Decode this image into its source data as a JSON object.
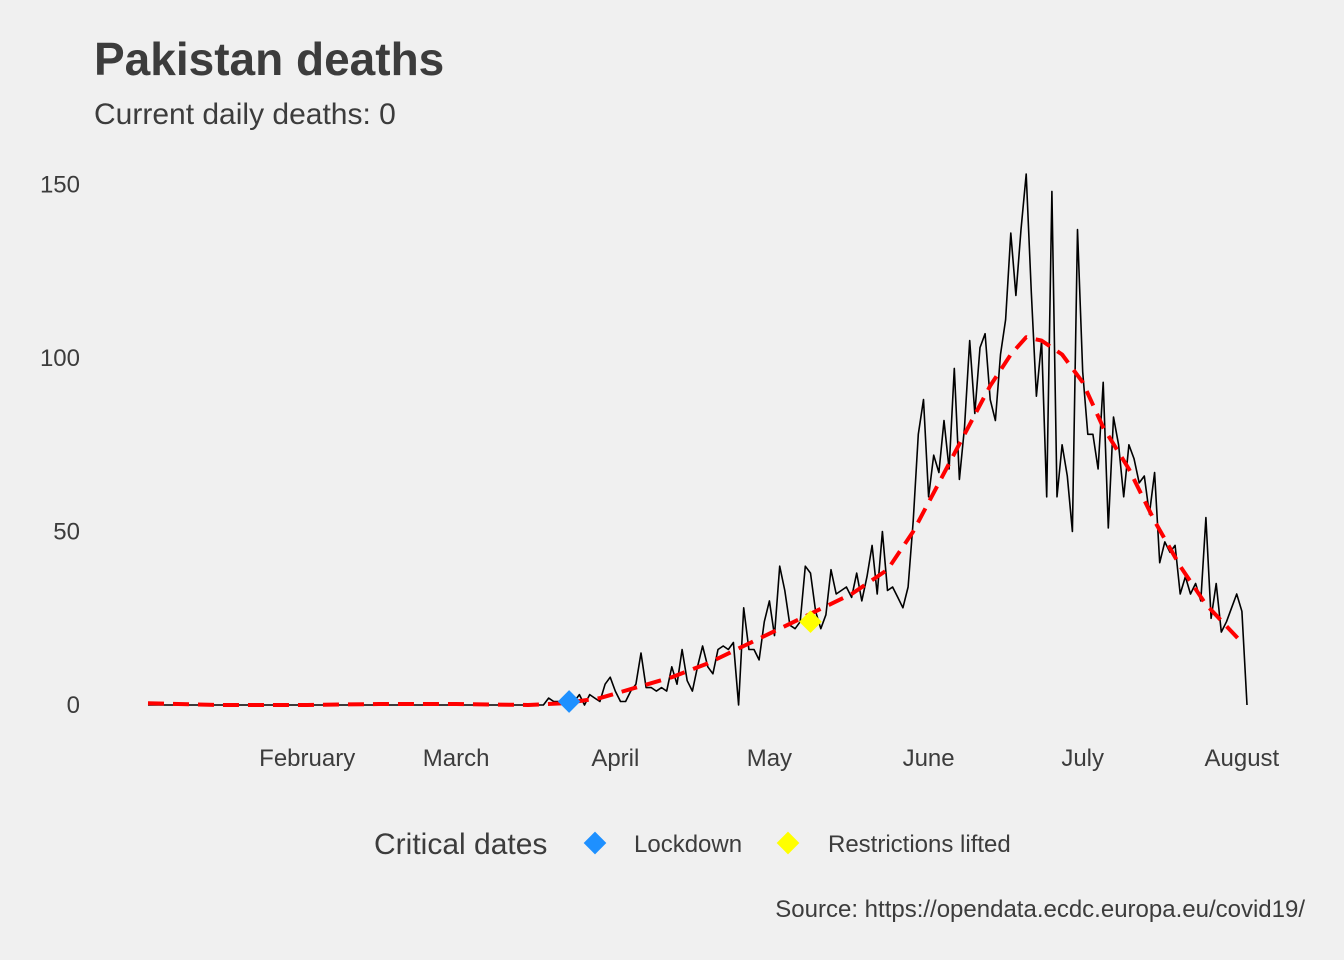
{
  "title": "Pakistan deaths",
  "subtitle": "Current daily deaths:  0",
  "caption": "Source: https://opendata.ecdc.europa.eu/covid19/",
  "legend": {
    "title": "Critical dates",
    "items": [
      {
        "label": "Lockdown",
        "color": "#1e90ff"
      },
      {
        "label": "Restrictions lifted",
        "color": "#ffff00"
      }
    ]
  },
  "chart_data": {
    "type": "line",
    "x_axis": {
      "min_date": "2020-01-01",
      "max_date": "2020-08-02",
      "ticks": [
        {
          "date": "2020-02-01",
          "label": "February"
        },
        {
          "date": "2020-03-01",
          "label": "March"
        },
        {
          "date": "2020-04-01",
          "label": "April"
        },
        {
          "date": "2020-05-01",
          "label": "May"
        },
        {
          "date": "2020-06-01",
          "label": "June"
        },
        {
          "date": "2020-07-01",
          "label": "July"
        },
        {
          "date": "2020-08-01",
          "label": "August"
        }
      ]
    },
    "y_axis": {
      "min": 0,
      "max": 155,
      "ticks": [
        0,
        50,
        100,
        150
      ]
    },
    "grid": false,
    "series": [
      {
        "style": "solid",
        "color": "#000000",
        "points": [
          [
            "2020-01-01",
            0
          ],
          [
            "2020-03-17",
            0
          ],
          [
            "2020-03-18",
            0
          ],
          [
            "2020-03-19",
            2
          ],
          [
            "2020-03-20",
            1
          ],
          [
            "2020-03-21",
            1
          ],
          [
            "2020-03-22",
            0
          ],
          [
            "2020-03-23",
            2
          ],
          [
            "2020-03-24",
            1
          ],
          [
            "2020-03-25",
            3
          ],
          [
            "2020-03-26",
            0
          ],
          [
            "2020-03-27",
            3
          ],
          [
            "2020-03-28",
            2
          ],
          [
            "2020-03-29",
            1
          ],
          [
            "2020-03-30",
            6
          ],
          [
            "2020-03-31",
            8
          ],
          [
            "2020-04-01",
            4
          ],
          [
            "2020-04-02",
            1
          ],
          [
            "2020-04-03",
            1
          ],
          [
            "2020-04-04",
            4
          ],
          [
            "2020-04-05",
            6
          ],
          [
            "2020-04-06",
            15
          ],
          [
            "2020-04-07",
            5
          ],
          [
            "2020-04-08",
            5
          ],
          [
            "2020-04-09",
            4
          ],
          [
            "2020-04-10",
            5
          ],
          [
            "2020-04-11",
            4
          ],
          [
            "2020-04-12",
            11
          ],
          [
            "2020-04-13",
            6
          ],
          [
            "2020-04-14",
            16
          ],
          [
            "2020-04-15",
            7
          ],
          [
            "2020-04-16",
            4
          ],
          [
            "2020-04-17",
            11
          ],
          [
            "2020-04-18",
            17
          ],
          [
            "2020-04-19",
            11
          ],
          [
            "2020-04-20",
            9
          ],
          [
            "2020-04-21",
            16
          ],
          [
            "2020-04-22",
            17
          ],
          [
            "2020-04-23",
            16
          ],
          [
            "2020-04-24",
            18
          ],
          [
            "2020-04-25",
            0
          ],
          [
            "2020-04-26",
            28
          ],
          [
            "2020-04-27",
            16
          ],
          [
            "2020-04-28",
            16
          ],
          [
            "2020-04-29",
            13
          ],
          [
            "2020-04-30",
            24
          ],
          [
            "2020-05-01",
            30
          ],
          [
            "2020-05-02",
            20
          ],
          [
            "2020-05-03",
            40
          ],
          [
            "2020-05-04",
            33
          ],
          [
            "2020-05-05",
            23
          ],
          [
            "2020-05-06",
            22
          ],
          [
            "2020-05-07",
            24
          ],
          [
            "2020-05-08",
            40
          ],
          [
            "2020-05-09",
            38
          ],
          [
            "2020-05-10",
            27
          ],
          [
            "2020-05-11",
            22
          ],
          [
            "2020-05-12",
            26
          ],
          [
            "2020-05-13",
            39
          ],
          [
            "2020-05-14",
            32
          ],
          [
            "2020-05-15",
            33
          ],
          [
            "2020-05-16",
            34
          ],
          [
            "2020-05-17",
            31
          ],
          [
            "2020-05-18",
            38
          ],
          [
            "2020-05-19",
            30
          ],
          [
            "2020-05-20",
            37
          ],
          [
            "2020-05-21",
            46
          ],
          [
            "2020-05-22",
            32
          ],
          [
            "2020-05-23",
            50
          ],
          [
            "2020-05-24",
            33
          ],
          [
            "2020-05-25",
            34
          ],
          [
            "2020-05-26",
            31
          ],
          [
            "2020-05-27",
            28
          ],
          [
            "2020-05-28",
            34
          ],
          [
            "2020-05-29",
            53
          ],
          [
            "2020-05-30",
            78
          ],
          [
            "2020-05-31",
            88
          ],
          [
            "2020-06-01",
            60
          ],
          [
            "2020-06-02",
            72
          ],
          [
            "2020-06-03",
            67
          ],
          [
            "2020-06-04",
            82
          ],
          [
            "2020-06-05",
            68
          ],
          [
            "2020-06-06",
            97
          ],
          [
            "2020-06-07",
            65
          ],
          [
            "2020-06-08",
            80
          ],
          [
            "2020-06-09",
            105
          ],
          [
            "2020-06-10",
            84
          ],
          [
            "2020-06-11",
            103
          ],
          [
            "2020-06-12",
            107
          ],
          [
            "2020-06-13",
            88
          ],
          [
            "2020-06-14",
            82
          ],
          [
            "2020-06-15",
            101
          ],
          [
            "2020-06-16",
            111
          ],
          [
            "2020-06-17",
            136
          ],
          [
            "2020-06-18",
            118
          ],
          [
            "2020-06-19",
            137
          ],
          [
            "2020-06-20",
            153
          ],
          [
            "2020-06-21",
            119
          ],
          [
            "2020-06-22",
            89
          ],
          [
            "2020-06-23",
            105
          ],
          [
            "2020-06-24",
            60
          ],
          [
            "2020-06-25",
            148
          ],
          [
            "2020-06-26",
            60
          ],
          [
            "2020-06-27",
            75
          ],
          [
            "2020-06-28",
            66
          ],
          [
            "2020-06-29",
            50
          ],
          [
            "2020-06-30",
            137
          ],
          [
            "2020-07-01",
            96
          ],
          [
            "2020-07-02",
            78
          ],
          [
            "2020-07-03",
            78
          ],
          [
            "2020-07-04",
            68
          ],
          [
            "2020-07-05",
            93
          ],
          [
            "2020-07-06",
            51
          ],
          [
            "2020-07-07",
            83
          ],
          [
            "2020-07-08",
            75
          ],
          [
            "2020-07-09",
            60
          ],
          [
            "2020-07-10",
            75
          ],
          [
            "2020-07-11",
            71
          ],
          [
            "2020-07-12",
            64
          ],
          [
            "2020-07-13",
            66
          ],
          [
            "2020-07-14",
            55
          ],
          [
            "2020-07-15",
            67
          ],
          [
            "2020-07-16",
            41
          ],
          [
            "2020-07-17",
            47
          ],
          [
            "2020-07-18",
            44
          ],
          [
            "2020-07-19",
            46
          ],
          [
            "2020-07-20",
            32
          ],
          [
            "2020-07-21",
            37
          ],
          [
            "2020-07-22",
            32
          ],
          [
            "2020-07-23",
            35
          ],
          [
            "2020-07-24",
            30
          ],
          [
            "2020-07-25",
            54
          ],
          [
            "2020-07-26",
            25
          ],
          [
            "2020-07-27",
            35
          ],
          [
            "2020-07-28",
            21
          ],
          [
            "2020-07-29",
            24
          ],
          [
            "2020-07-30",
            28
          ],
          [
            "2020-07-31",
            32
          ],
          [
            "2020-08-01",
            27
          ],
          [
            "2020-08-02",
            0
          ]
        ]
      },
      {
        "style": "dashed",
        "color": "#ff0000",
        "points": [
          [
            "2020-01-01",
            0.5
          ],
          [
            "2020-01-15",
            0
          ],
          [
            "2020-02-01",
            0
          ],
          [
            "2020-02-15",
            0.3
          ],
          [
            "2020-03-01",
            0.3
          ],
          [
            "2020-03-15",
            0
          ],
          [
            "2020-03-22",
            0.5
          ],
          [
            "2020-03-29",
            2
          ],
          [
            "2020-04-05",
            5
          ],
          [
            "2020-04-12",
            8
          ],
          [
            "2020-04-19",
            12
          ],
          [
            "2020-04-26",
            17
          ],
          [
            "2020-05-03",
            22
          ],
          [
            "2020-05-10",
            27
          ],
          [
            "2020-05-17",
            32
          ],
          [
            "2020-05-24",
            39
          ],
          [
            "2020-05-29",
            50
          ],
          [
            "2020-06-03",
            64
          ],
          [
            "2020-06-08",
            78
          ],
          [
            "2020-06-13",
            92
          ],
          [
            "2020-06-17",
            101
          ],
          [
            "2020-06-20",
            106
          ],
          [
            "2020-06-23",
            105
          ],
          [
            "2020-06-27",
            101
          ],
          [
            "2020-07-01",
            93
          ],
          [
            "2020-07-05",
            80
          ],
          [
            "2020-07-10",
            68
          ],
          [
            "2020-07-15",
            53
          ],
          [
            "2020-07-20",
            40
          ],
          [
            "2020-07-25",
            29
          ],
          [
            "2020-08-01",
            18
          ]
        ]
      }
    ],
    "events": [
      {
        "date": "2020-03-23",
        "value": 1,
        "label": "Lockdown",
        "color": "#1e90ff"
      },
      {
        "date": "2020-05-09",
        "value": 24,
        "label": "Restrictions lifted",
        "color": "#ffff00"
      }
    ]
  }
}
